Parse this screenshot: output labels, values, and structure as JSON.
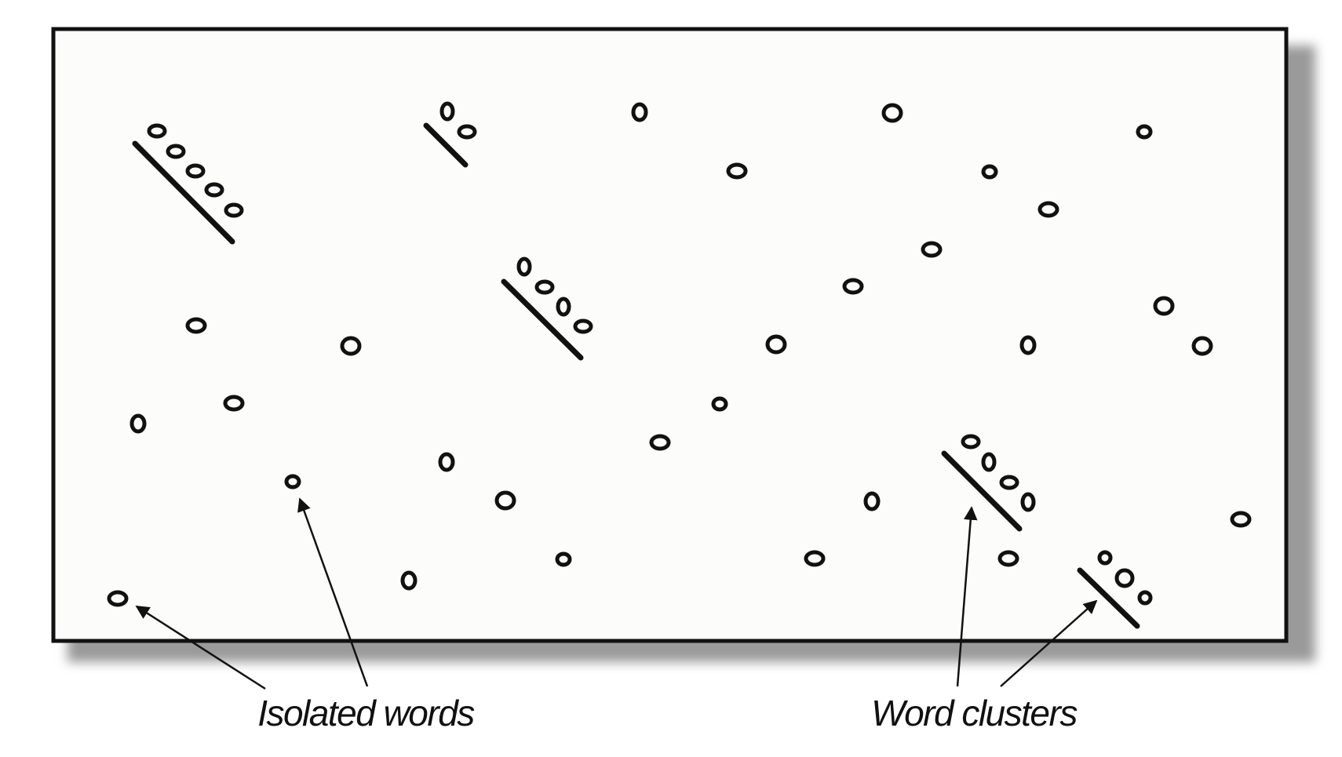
{
  "labels": {
    "isolated": "Isolated words",
    "clusters": "Word clusters"
  },
  "colors": {
    "ink": "#111111",
    "paper": "#fcfcfa",
    "shadow": "#9a9a9a"
  }
}
